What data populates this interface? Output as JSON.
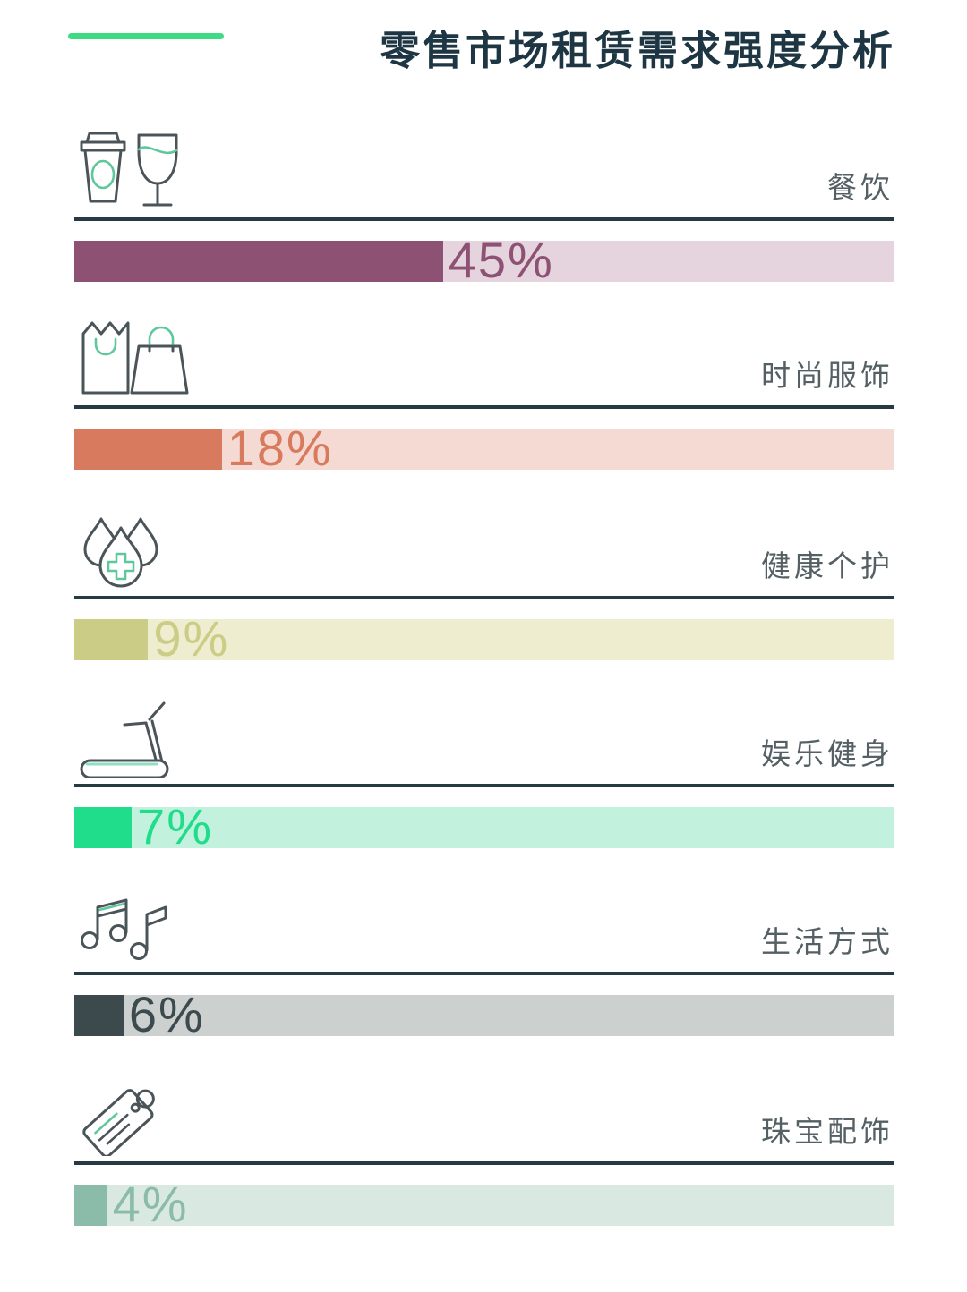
{
  "title": "零售市场租赁需求强度分析",
  "accent_color": "#3ddc84",
  "chart_data": {
    "type": "bar",
    "orientation": "horizontal",
    "title": "零售市场租赁需求强度分析",
    "categories": [
      "餐饮",
      "时尚服饰",
      "健康个护",
      "娱乐健身",
      "生活方式",
      "珠宝配饰"
    ],
    "values": [
      45,
      18,
      9,
      7,
      6,
      4
    ],
    "value_labels": [
      "45%",
      "18%",
      "9%",
      "7%",
      "6%",
      "4%"
    ],
    "unit": "%",
    "xlim": [
      0,
      100
    ],
    "grid": false,
    "legend": false,
    "bar_colors": [
      "#8d5174",
      "#d87a5e",
      "#cbcc86",
      "#1fdd8a",
      "#3c494d",
      "#8bbcaa"
    ],
    "track_colors": [
      "#e5d3de",
      "#f4dad2",
      "#efedcf",
      "#c2f1dd",
      "#ccd1cf",
      "#dae8e2"
    ]
  },
  "rows": [
    {
      "label": "餐饮",
      "value": 45,
      "value_label": "45%",
      "icon": "coffee-and-wine-icon",
      "fill": "#8d5174",
      "track": "#e5d3de"
    },
    {
      "label": "时尚服饰",
      "value": 18,
      "value_label": "18%",
      "icon": "shopping-bags-icon",
      "fill": "#d87a5e",
      "track": "#f4dad2"
    },
    {
      "label": "健康个护",
      "value": 9,
      "value_label": "9%",
      "icon": "water-drops-medical-icon",
      "fill": "#cbcc86",
      "track": "#efedcf"
    },
    {
      "label": "娱乐健身",
      "value": 7,
      "value_label": "7%",
      "icon": "treadmill-icon",
      "fill": "#1fdd8a",
      "track": "#c2f1dd"
    },
    {
      "label": "生活方式",
      "value": 6,
      "value_label": "6%",
      "icon": "music-notes-icon",
      "fill": "#3c494d",
      "track": "#ccd1cf"
    },
    {
      "label": "珠宝配饰",
      "value": 4,
      "value_label": "4%",
      "icon": "price-tag-icon",
      "fill": "#8bbcaa",
      "track": "#dae8e2"
    }
  ]
}
